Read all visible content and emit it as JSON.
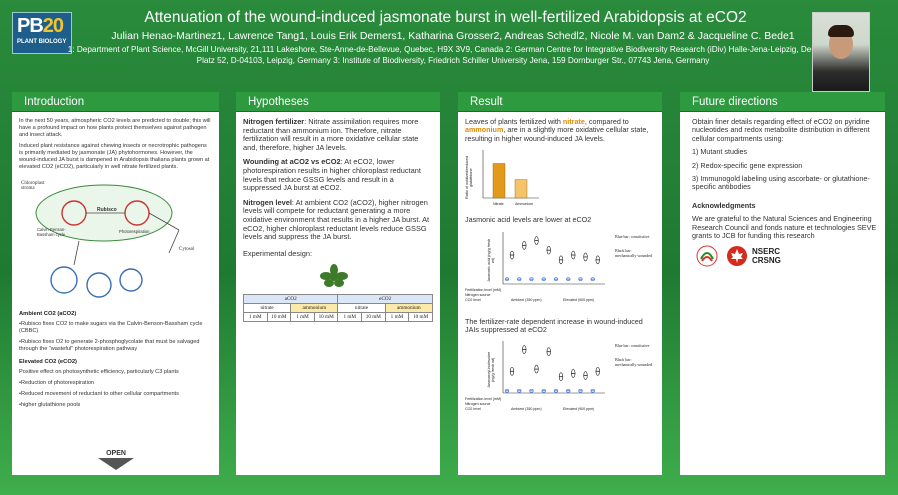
{
  "header": {
    "logo_pb": "PB",
    "logo_num": "20",
    "logo_line": "PLANT BIOLOGY",
    "title": "Attenuation of the wound-induced jasmonate burst in well-fertilized Arabidopsis at eCO2",
    "authors": "Julian Henao-Martinez1, Lawrence Tang1, Louis Erik Demers1, Katharina Grosser2, Andreas Schedl2, Nicole M. van Dam2 & Jacqueline C. Bede1",
    "affiliations": "1: Department of Plant Science, McGill University, 21,111 Lakeshore, Ste-Anne-de-Bellevue, Quebec, H9X 3V9, Canada 2: German Centre for Integrative Biodiversity Research (iDiv) Halle-Jena-Leipzig, Deutscher Platz 52, D-04103, Leipzig, Germany 3: Institute of Biodiversity, Friedrich Schiller University Jena, 159 Dornburger Str., 07743 Jena, Germany"
  },
  "intro": {
    "heading": "Introduction",
    "p1": "In the next 50 years, atmospheric CO2 levels are predicted to double; this will have a profound impact on how plants protect themselves against pathogen and insect attack.",
    "p2": "Induced plant resistance against chewing insects or necrotrophic pathogens is primarily mediated by jasmonate (JA) phytohormones. However, the wound-induced JA burst is dampened in Arabidopsis thaliana plants grown at elevated CO2 (eCO2), particularly in well nitrate fertilized plants.",
    "diagram_labels": {
      "chloroplast": "Chloroplast stroma",
      "rubisco": "Rubisco",
      "cytosol": "Cytosol",
      "photo": "Photorespiration",
      "calvin": "Calvin-Benson-Bassham cycle"
    },
    "acO2_heading": "Ambient CO2 (aCO2)",
    "acO2_b1": "•Rubisco fixes CO2 to make sugars via the Calvin-Benson-Bassham cycle (CBBC)",
    "acO2_b2": "•Rubisco fixes O2 to generate 2-phosphoglycolate that must be salvaged through the “wasteful” photorespiration pathway",
    "eco2_heading": "Elevated CO2 (eCO2)",
    "eco2_b1": "Positive effect on photosynthetic efficiency, particularly C3 plants",
    "eco2_b2": "•Reduction of photorespiration",
    "eco2_b3": "•Reduced movement of reductant to other cellular compartments",
    "eco2_b4": "•higher glutathione pools",
    "open_label": "OPEN"
  },
  "hypotheses": {
    "heading": "Hypotheses",
    "h1_title": "Nitrogen fertilizer",
    "h1_text": ": Nitrate assimilation requires more reductant than ammonium ion. Therefore, nitrate fertilization will result in a more oxidative cellular state and, therefore, higher JA levels.",
    "h2_title": "Wounding at aCO2 vs eCO2",
    "h2_text": ": At eCO2, lower photorespiration results in higher chloroplast reductant levels that reduce GSSG levels and result in a suppressed JA burst at eCO2.",
    "h3_title": "Nitrogen level",
    "h3_text": ": At ambient CO2 (aCO2), higher nitrogen levels will compete for reductant generating a more oxidative environment that results in a higher JA burst. At eCO2, higher chloroplast reductant levels reduce GSSG levels and suppress the JA burst.",
    "design_label": "Experimental design:",
    "table": {
      "co2": [
        "aCO2",
        "eCO2"
      ],
      "nsource": [
        "nitrate",
        "ammonium",
        "nitrate",
        "ammonium"
      ],
      "levels": [
        "1 mM",
        "10 mM",
        "1 mM",
        "10 mM",
        "1 mM",
        "10 mM",
        "1 mM",
        "10 mM"
      ]
    }
  },
  "result": {
    "heading": "Result",
    "intro_pre": "Leaves of plants fertilized with ",
    "intro_nitrate": "nitrate",
    "intro_mid": ", compared to ",
    "intro_ammonium": "ammonium",
    "intro_post": ", are in a slightly more oxidative cellular state, resulting in higher wound-induced JA levels.",
    "bar_ylabel": "Ratio of oxidized/reduced glutathione",
    "bar_categories": [
      "Nitrate",
      "Ammonium"
    ],
    "ja_caption": "Jasmonic acid levels are lower at eCO2",
    "ja_ylabel": "Jasmonic acid (ng/g fresh wt)",
    "legend_blue": "Blue bar: constitutive",
    "legend_black": "Black bar: mechanically wounded",
    "row_fert": "Fertilization level (mM)",
    "row_nsource": "Nitrogen source",
    "row_co2": "CO2 level",
    "ambient_label": "Ambient (350 ppm)",
    "elevated_label": "Elevated (900 ppm)",
    "jai_caption": "The fertilizer-rate dependent increase in wound-induced JAIs suppressed at eCO2",
    "jai_ylabel": "Jasmonoyl-isoleucine (ng/g fresh wt)"
  },
  "future": {
    "heading": "Future directions",
    "p1": "Obtain finer details regarding effect of eCO2 on pyridine nucleotides and redox metabolite distribution in different cellular compartments using:",
    "i1": "1) Mutant studies",
    "i2": "2) Redox-specific gene expression",
    "i3": "3) Immunogold labeling using ascorbate- or glutathione-specific antibodies",
    "ack_heading": "Acknowledgments",
    "ack_text": "We are grateful to the Natural Sciences and Engineering Research Council  and fonds nature et technologies SEVE grants to JCB for funding this research",
    "logo_nserc": "NSERC",
    "logo_crsng": "CRSNG"
  },
  "chart_data": [
    {
      "type": "bar",
      "categories": [
        "Nitrate",
        "Ammonium"
      ],
      "values": [
        0.75,
        0.4
      ],
      "ylabel": "Ratio of oxidized/reduced glutathione",
      "ylim": [
        0,
        1
      ]
    },
    {
      "type": "scatter",
      "ylabel": "Jasmonic acid (ng/g fresh wt)",
      "categories": [
        "1 mM nitrate aCO2",
        "10 mM nitrate aCO2",
        "1 mM ammonium aCO2",
        "10 mM ammonium aCO2",
        "1 mM nitrate eCO2",
        "10 mM nitrate eCO2",
        "1 mM ammonium eCO2",
        "10 mM ammonium eCO2"
      ],
      "series": [
        {
          "name": "Blue bar: constitutive",
          "values": [
            5,
            5,
            5,
            5,
            5,
            5,
            5,
            5
          ]
        },
        {
          "name": "Black bar: mechanically wounded",
          "values": [
            30,
            40,
            45,
            35,
            25,
            30,
            28,
            25
          ]
        }
      ]
    },
    {
      "type": "scatter",
      "ylabel": "Jasmonoyl-isoleucine (ng/g fresh wt)",
      "categories": [
        "1 mM nitrate aCO2",
        "10 mM nitrate aCO2",
        "1 mM ammonium aCO2",
        "10 mM ammonium aCO2",
        "1 mM nitrate eCO2",
        "10 mM nitrate eCO2",
        "1 mM ammonium eCO2",
        "10 mM ammonium eCO2"
      ],
      "series": [
        {
          "name": "Blue bar: constitutive",
          "values": [
            2,
            2,
            2,
            2,
            2,
            2,
            2,
            2
          ]
        },
        {
          "name": "Black bar: mechanically wounded",
          "values": [
            20,
            40,
            22,
            38,
            15,
            18,
            16,
            20
          ]
        }
      ]
    }
  ]
}
